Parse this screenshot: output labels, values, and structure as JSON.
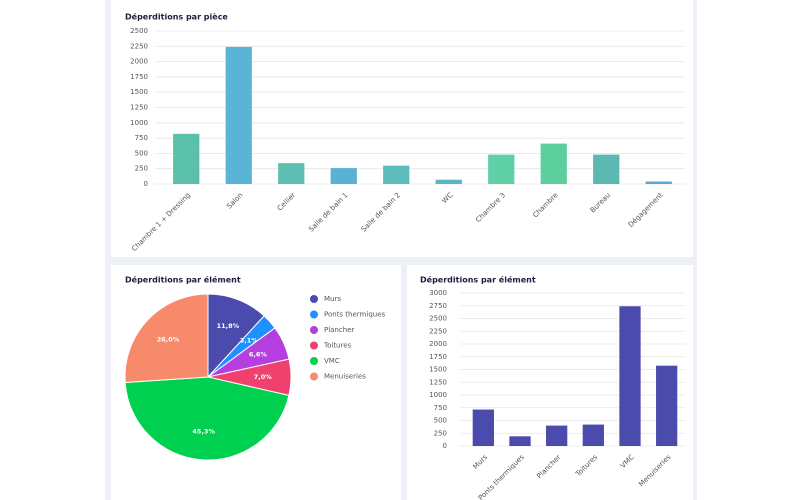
{
  "chart_data": [
    {
      "type": "bar",
      "title": "Déperditions par pièce",
      "categories": [
        "Chambre 1 + Dressing",
        "Salon",
        "Cellier",
        "Salle de bain 1",
        "Salle de bain 2",
        "WC",
        "Chambre 3",
        "Chambre",
        "Bureau",
        "Dégagement"
      ],
      "values": [
        820,
        2240,
        340,
        260,
        300,
        70,
        480,
        660,
        480,
        40
      ],
      "colors": [
        "#5bc0aa",
        "#5bb4d4",
        "#5cbfb2",
        "#5ab2d2",
        "#5dbcbc",
        "#5ab6c6",
        "#5fcfa6",
        "#5dcf9f",
        "#5bb9b2",
        "#5aa8d2"
      ],
      "ylim": [
        0,
        2500
      ],
      "yticks": [
        0,
        250,
        500,
        750,
        1000,
        1250,
        1500,
        1750,
        2000,
        2250,
        2500
      ],
      "grid": true
    },
    {
      "type": "pie",
      "title": "Déperditions par élément",
      "categories": [
        "Murs",
        "Ponts thermiques",
        "Plancher",
        "Toitures",
        "VMC",
        "Menuiseries"
      ],
      "values": [
        11.8,
        3.1,
        6.6,
        7.0,
        45.3,
        26.0
      ],
      "value_labels": [
        "11,8%",
        "3,1%",
        "6,6%",
        "7,0%",
        "45,3%",
        "26,0%"
      ],
      "colors": [
        "#4b4aad",
        "#1e90ff",
        "#b53ee0",
        "#f0406e",
        "#00d050",
        "#f78a6a"
      ],
      "legend": "right"
    },
    {
      "type": "bar",
      "title": "Déperditions par élément",
      "categories": [
        "Murs",
        "Ponts thermiques",
        "Plancher",
        "Toitures",
        "VMC",
        "Menuiseries"
      ],
      "values": [
        715,
        190,
        400,
        420,
        2740,
        1575
      ],
      "color": "#4b4aad",
      "ylim": [
        0,
        3000
      ],
      "yticks": [
        0,
        250,
        500,
        750,
        1000,
        1250,
        1500,
        1750,
        2000,
        2250,
        2500,
        2750,
        3000
      ],
      "grid": true
    }
  ]
}
